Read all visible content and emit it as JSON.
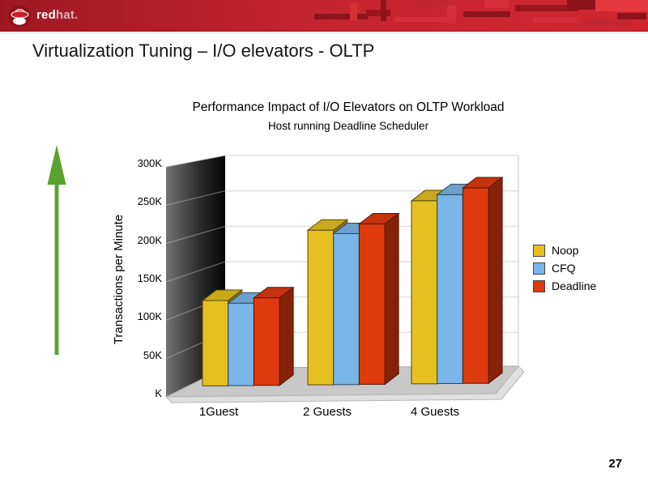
{
  "slide": {
    "logo": {
      "brand_bold": "red",
      "brand_light": "hat."
    },
    "title": "Virtualization Tuning – I/O elevators - OLTP",
    "page_number": "27",
    "colors": {
      "banner_red": "#c32330",
      "arrow_green": "#57a32d"
    }
  },
  "chart_data": {
    "type": "bar",
    "style": "3d-bar",
    "title": "Performance Impact of I/O Elevators on OLTP Workload",
    "subtitle": "Host running Deadline Scheduler",
    "xlabel": "",
    "ylabel": "Transactions per Minute",
    "categories": [
      "1Guest",
      "2 Guests",
      "4 Guests"
    ],
    "series": [
      {
        "name": "Noop",
        "color": "#e6c021",
        "values": [
          117000,
          212000,
          251000
        ]
      },
      {
        "name": "CFQ",
        "color": "#7ab6e8",
        "values": [
          113000,
          207000,
          259000
        ]
      },
      {
        "name": "Deadline",
        "color": "#de3a0e",
        "values": [
          120000,
          220000,
          268000
        ]
      }
    ],
    "y_ticks_top_to_bottom": [
      "300K",
      "250K",
      "200K",
      "150K",
      "100K",
      "50K",
      "K"
    ],
    "ylim": [
      0,
      300000
    ],
    "grid": true,
    "legend_position": "right"
  }
}
